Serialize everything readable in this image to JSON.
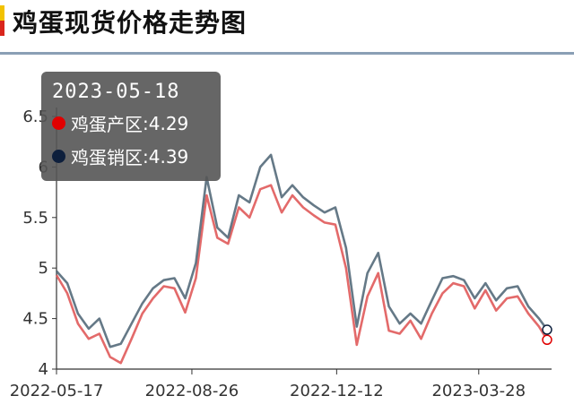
{
  "title": "鸡蛋现货价格走势图",
  "tooltip": {
    "date": "2023-05-18",
    "rows": [
      {
        "label": "鸡蛋产区",
        "value": "4.29",
        "color": "#e00000"
      },
      {
        "label": "鸡蛋销区",
        "value": "4.39",
        "color": "#0d1f3c"
      }
    ]
  },
  "chart_data": {
    "type": "line",
    "title": "鸡蛋现货价格走势图",
    "xlabel": "",
    "ylabel": "",
    "ylim": [
      4,
      6.5
    ],
    "yticks": [
      "4",
      "4.5",
      "5",
      "5.5",
      "6",
      "6.5"
    ],
    "xticks": [
      "2022-05-17",
      "2022-08-26",
      "2022-12-12",
      "2023-03-28"
    ],
    "x": [
      "2022-05-17",
      "2022-05-25",
      "2022-06-02",
      "2022-06-10",
      "2022-06-18",
      "2022-06-26",
      "2022-07-04",
      "2022-07-12",
      "2022-07-20",
      "2022-07-28",
      "2022-08-05",
      "2022-08-13",
      "2022-08-21",
      "2022-08-29",
      "2022-09-06",
      "2022-09-14",
      "2022-09-22",
      "2022-09-30",
      "2022-10-08",
      "2022-10-16",
      "2022-10-24",
      "2022-11-01",
      "2022-11-09",
      "2022-11-17",
      "2022-11-25",
      "2022-12-03",
      "2022-12-11",
      "2022-12-19",
      "2022-12-27",
      "2023-01-04",
      "2023-01-12",
      "2023-01-20",
      "2023-01-28",
      "2023-02-05",
      "2023-02-13",
      "2023-02-21",
      "2023-03-01",
      "2023-03-09",
      "2023-03-17",
      "2023-03-25",
      "2023-04-02",
      "2023-04-10",
      "2023-04-18",
      "2023-04-26",
      "2023-05-04",
      "2023-05-12",
      "2023-05-18"
    ],
    "series": [
      {
        "name": "鸡蛋产区",
        "color": "#e05a5a",
        "values": [
          4.93,
          4.75,
          4.45,
          4.3,
          4.35,
          4.12,
          4.06,
          4.3,
          4.55,
          4.7,
          4.82,
          4.8,
          4.56,
          4.9,
          5.72,
          5.3,
          5.24,
          5.6,
          5.5,
          5.78,
          5.82,
          5.55,
          5.72,
          5.6,
          5.52,
          5.45,
          5.43,
          5.0,
          4.24,
          4.72,
          4.95,
          4.38,
          4.35,
          4.48,
          4.3,
          4.55,
          4.75,
          4.85,
          4.82,
          4.6,
          4.78,
          4.58,
          4.7,
          4.72,
          4.55,
          4.42,
          4.29
        ]
      },
      {
        "name": "鸡蛋销区",
        "color": "#4a6272",
        "values": [
          4.97,
          4.85,
          4.55,
          4.4,
          4.5,
          4.22,
          4.25,
          4.45,
          4.65,
          4.8,
          4.88,
          4.9,
          4.7,
          5.05,
          5.9,
          5.4,
          5.3,
          5.72,
          5.65,
          6.0,
          6.12,
          5.7,
          5.82,
          5.7,
          5.62,
          5.55,
          5.6,
          5.2,
          4.42,
          4.95,
          5.15,
          4.62,
          4.45,
          4.55,
          4.45,
          4.68,
          4.9,
          4.92,
          4.88,
          4.7,
          4.85,
          4.68,
          4.8,
          4.82,
          4.62,
          4.5,
          4.39
        ]
      }
    ],
    "grid": false,
    "legend": "none"
  }
}
